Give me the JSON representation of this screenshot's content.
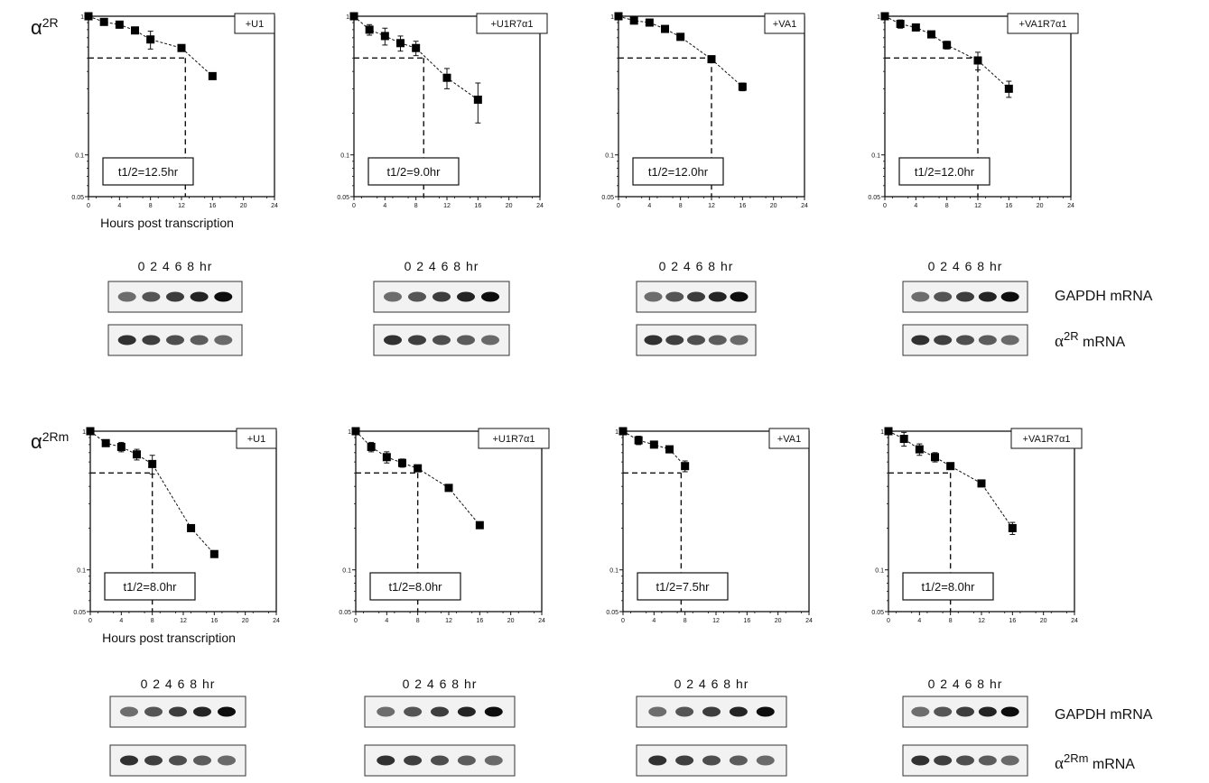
{
  "rows": [
    {
      "label_symbol": "α",
      "label_sup": "2R",
      "gel_side_labels": [
        {
          "main": "GAPDH mRNA"
        },
        {
          "alpha": "α",
          "sup": "2R",
          "rest": " mRNA"
        }
      ],
      "panels": [
        {
          "condition": "+U1",
          "half_life": "t1/2=12.5hr",
          "half_life_hr": 12.5,
          "blot_lanes": "0 2 4 6 8 hr",
          "x": [
            0,
            2,
            4,
            6,
            8,
            12,
            16
          ],
          "y": [
            1.0,
            0.91,
            0.87,
            0.79,
            0.68,
            0.59,
            0.37
          ],
          "err": [
            0,
            0.04,
            0.05,
            0.04,
            0.1,
            0,
            0
          ]
        },
        {
          "condition": "+U1R7α1",
          "half_life": "t1/2=9.0hr",
          "half_life_hr": 9.0,
          "blot_lanes": "0 2 4 6 8 hr",
          "x": [
            0,
            2,
            4,
            6,
            8,
            12,
            16
          ],
          "y": [
            1.0,
            0.8,
            0.72,
            0.64,
            0.59,
            0.36,
            0.25
          ],
          "err": [
            0,
            0.07,
            0.1,
            0.08,
            0.07,
            0.06,
            0.08
          ]
        },
        {
          "condition": "+VA1",
          "half_life": "t1/2=12.0hr",
          "half_life_hr": 12.0,
          "blot_lanes": "0 2 4 6 8 hr",
          "x": [
            0,
            2,
            4,
            6,
            8,
            12,
            16
          ],
          "y": [
            1.0,
            0.93,
            0.9,
            0.81,
            0.71,
            0.49,
            0.31
          ],
          "err": [
            0,
            0.02,
            0.02,
            0.03,
            0.03,
            0.02,
            0.02
          ]
        },
        {
          "condition": "+VA1R7α1",
          "half_life": "t1/2=12.0hr",
          "half_life_hr": 12.0,
          "blot_lanes": "0 2 4 6 8 hr",
          "x": [
            0,
            2,
            4,
            6,
            8,
            12,
            16
          ],
          "y": [
            1.0,
            0.88,
            0.83,
            0.74,
            0.62,
            0.48,
            0.3
          ],
          "err": [
            0,
            0.06,
            0.03,
            0.04,
            0.04,
            0.07,
            0.04
          ]
        }
      ]
    },
    {
      "label_symbol": "α",
      "label_sup": "2Rm",
      "gel_side_labels": [
        {
          "main": "GAPDH  mRNA"
        },
        {
          "alpha": "α",
          "sup": "2Rm",
          "rest": " mRNA"
        }
      ],
      "panels": [
        {
          "condition": "+U1",
          "half_life": "t1/2=8.0hr",
          "half_life_hr": 8.0,
          "blot_lanes": "0 2 4 6 8 hr",
          "x": [
            0,
            2,
            4,
            6,
            8,
            13,
            16
          ],
          "y": [
            1.0,
            0.82,
            0.77,
            0.68,
            0.58,
            0.2,
            0.13
          ],
          "err": [
            0,
            0.03,
            0.06,
            0.06,
            0.09,
            0,
            0
          ]
        },
        {
          "condition": "+U1R7α1",
          "half_life": "t1/2=8.0hr",
          "half_life_hr": 8.0,
          "blot_lanes": "0 2 4 6 8 hr",
          "x": [
            0,
            2,
            4,
            6,
            8,
            12,
            16
          ],
          "y": [
            1.0,
            0.77,
            0.65,
            0.59,
            0.54,
            0.39,
            0.21
          ],
          "err": [
            0,
            0.06,
            0.06,
            0.04,
            0.03,
            0,
            0
          ]
        },
        {
          "condition": "+VA1",
          "half_life": "t1/2=7.5hr",
          "half_life_hr": 7.5,
          "blot_lanes": "0 2 4 6 8 hr",
          "x": [
            0,
            2,
            4,
            6,
            8
          ],
          "y": [
            1.0,
            0.86,
            0.8,
            0.74,
            0.56
          ],
          "err": [
            0,
            0.06,
            0.04,
            0,
            0.05
          ]
        },
        {
          "condition": "+VA1R7α1",
          "half_life": "t1/2=8.0hr",
          "half_life_hr": 8.0,
          "blot_lanes": "0 2 4 6 8 hr",
          "x": [
            0,
            2,
            4,
            6,
            8,
            12,
            16
          ],
          "y": [
            1.0,
            0.88,
            0.74,
            0.65,
            0.56,
            0.42,
            0.2
          ],
          "err": [
            0,
            0.1,
            0.07,
            0.05,
            0.03,
            0,
            0.02
          ]
        }
      ]
    }
  ],
  "xlabel": "Hours post transcription",
  "x_ticks": [
    "0",
    "4",
    "8",
    "12",
    "16",
    "20",
    "24"
  ],
  "y_ticks": [
    "1",
    "0.1",
    "0.05"
  ],
  "chart_data": [
    {
      "type": "scatter",
      "title": "+U1",
      "ylabel": "α2R",
      "xlabel": "Hours post transcription",
      "yscale": "log",
      "xlim": [
        0,
        24
      ],
      "ylim": [
        0.05,
        1
      ],
      "half_life_hr": 12.5,
      "x": [
        0,
        2,
        4,
        6,
        8,
        12,
        16
      ],
      "y": [
        1.0,
        0.91,
        0.87,
        0.79,
        0.68,
        0.59,
        0.37
      ]
    },
    {
      "type": "scatter",
      "title": "+U1R7α1",
      "ylabel": "α2R",
      "yscale": "log",
      "xlim": [
        0,
        24
      ],
      "ylim": [
        0.05,
        1
      ],
      "half_life_hr": 9.0,
      "x": [
        0,
        2,
        4,
        6,
        8,
        12,
        16
      ],
      "y": [
        1.0,
        0.8,
        0.72,
        0.64,
        0.59,
        0.36,
        0.25
      ]
    },
    {
      "type": "scatter",
      "title": "+VA1",
      "ylabel": "α2R",
      "yscale": "log",
      "xlim": [
        0,
        24
      ],
      "ylim": [
        0.05,
        1
      ],
      "half_life_hr": 12.0,
      "x": [
        0,
        2,
        4,
        6,
        8,
        12,
        16
      ],
      "y": [
        1.0,
        0.93,
        0.9,
        0.81,
        0.71,
        0.49,
        0.31
      ]
    },
    {
      "type": "scatter",
      "title": "+VA1R7α1",
      "ylabel": "α2R",
      "yscale": "log",
      "xlim": [
        0,
        24
      ],
      "ylim": [
        0.05,
        1
      ],
      "half_life_hr": 12.0,
      "x": [
        0,
        2,
        4,
        6,
        8,
        12,
        16
      ],
      "y": [
        1.0,
        0.88,
        0.83,
        0.74,
        0.62,
        0.48,
        0.3
      ]
    },
    {
      "type": "scatter",
      "title": "+U1",
      "ylabel": "α2Rm",
      "xlabel": "Hours post transcription",
      "yscale": "log",
      "xlim": [
        0,
        24
      ],
      "ylim": [
        0.05,
        1
      ],
      "half_life_hr": 8.0,
      "x": [
        0,
        2,
        4,
        6,
        8,
        13,
        16
      ],
      "y": [
        1.0,
        0.82,
        0.77,
        0.68,
        0.58,
        0.2,
        0.13
      ]
    },
    {
      "type": "scatter",
      "title": "+U1R7α1",
      "ylabel": "α2Rm",
      "yscale": "log",
      "xlim": [
        0,
        24
      ],
      "ylim": [
        0.05,
        1
      ],
      "half_life_hr": 8.0,
      "x": [
        0,
        2,
        4,
        6,
        8,
        12,
        16
      ],
      "y": [
        1.0,
        0.77,
        0.65,
        0.59,
        0.54,
        0.39,
        0.21
      ]
    },
    {
      "type": "scatter",
      "title": "+VA1",
      "ylabel": "α2Rm",
      "yscale": "log",
      "xlim": [
        0,
        24
      ],
      "ylim": [
        0.05,
        1
      ],
      "half_life_hr": 7.5,
      "x": [
        0,
        2,
        4,
        6,
        8
      ],
      "y": [
        1.0,
        0.86,
        0.8,
        0.74,
        0.56
      ]
    },
    {
      "type": "scatter",
      "title": "+VA1R7α1",
      "ylabel": "α2Rm",
      "yscale": "log",
      "xlim": [
        0,
        24
      ],
      "ylim": [
        0.05,
        1
      ],
      "half_life_hr": 8.0,
      "x": [
        0,
        2,
        4,
        6,
        8,
        12,
        16
      ],
      "y": [
        1.0,
        0.88,
        0.74,
        0.65,
        0.56,
        0.42,
        0.2
      ]
    }
  ]
}
